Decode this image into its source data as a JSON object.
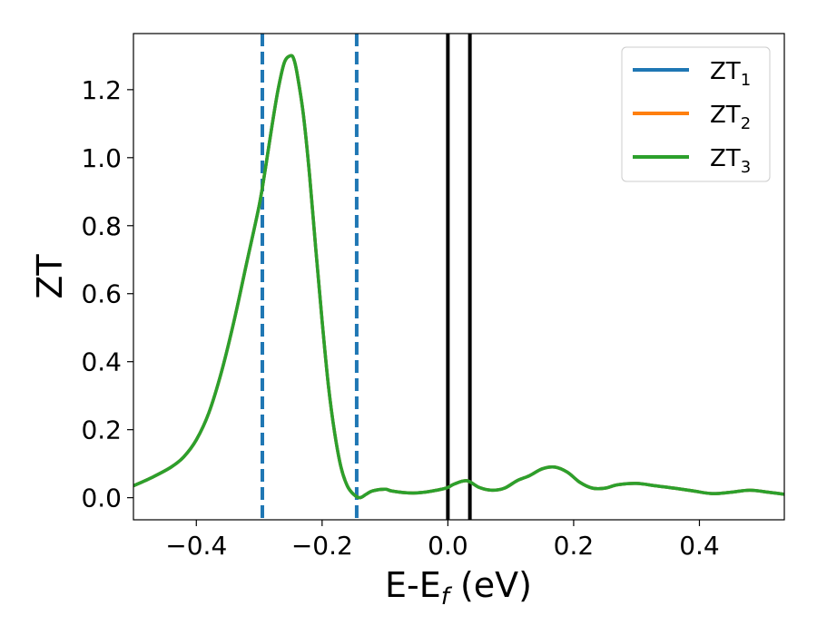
{
  "chart_data": {
    "type": "line",
    "xlabel": "E-E",
    "xlabel_sub": "f",
    "xlabel_unit": " (eV)",
    "ylabel": "ZT",
    "xlim": [
      -0.5,
      0.535
    ],
    "ylim": [
      -0.065,
      1.365
    ],
    "xticks": [
      -0.4,
      -0.2,
      0.0,
      0.2,
      0.4
    ],
    "xtick_labels": [
      "−0.4",
      "−0.2",
      "0.0",
      "0.2",
      "0.4"
    ],
    "yticks": [
      0.0,
      0.2,
      0.4,
      0.6,
      0.8,
      1.0,
      1.2
    ],
    "ytick_labels": [
      "0.0",
      "0.2",
      "0.4",
      "0.6",
      "0.8",
      "1.0",
      "1.2"
    ],
    "legend_position": "top-right",
    "x": [
      -0.5,
      -0.47,
      -0.44,
      -0.42,
      -0.4,
      -0.38,
      -0.36,
      -0.34,
      -0.32,
      -0.3,
      -0.29,
      -0.28,
      -0.27,
      -0.26,
      -0.25,
      -0.245,
      -0.24,
      -0.23,
      -0.22,
      -0.21,
      -0.2,
      -0.19,
      -0.18,
      -0.17,
      -0.16,
      -0.15,
      -0.14,
      -0.13,
      -0.12,
      -0.1,
      -0.09,
      -0.07,
      -0.05,
      -0.03,
      -0.01,
      0.0,
      0.01,
      0.03,
      0.05,
      0.07,
      0.09,
      0.11,
      0.13,
      0.15,
      0.17,
      0.19,
      0.21,
      0.23,
      0.25,
      0.27,
      0.3,
      0.33,
      0.36,
      0.39,
      0.42,
      0.45,
      0.48,
      0.51,
      0.535
    ],
    "series": [
      {
        "name": "ZT",
        "sub": "1",
        "color": "#1f77b4",
        "values": [
          0.035,
          0.06,
          0.09,
          0.12,
          0.17,
          0.25,
          0.37,
          0.52,
          0.69,
          0.86,
          0.97,
          1.09,
          1.2,
          1.28,
          1.3,
          1.29,
          1.25,
          1.13,
          0.95,
          0.73,
          0.52,
          0.33,
          0.19,
          0.09,
          0.035,
          0.01,
          0.0,
          0.01,
          0.02,
          0.025,
          0.02,
          0.015,
          0.014,
          0.018,
          0.025,
          0.03,
          0.04,
          0.05,
          0.03,
          0.022,
          0.028,
          0.05,
          0.065,
          0.085,
          0.09,
          0.075,
          0.045,
          0.028,
          0.028,
          0.038,
          0.042,
          0.035,
          0.028,
          0.02,
          0.012,
          0.016,
          0.022,
          0.016,
          0.01
        ]
      },
      {
        "name": "ZT",
        "sub": "2",
        "color": "#ff7f0e",
        "values": [
          0.035,
          0.06,
          0.09,
          0.12,
          0.17,
          0.25,
          0.37,
          0.52,
          0.69,
          0.86,
          0.97,
          1.09,
          1.2,
          1.28,
          1.3,
          1.29,
          1.25,
          1.13,
          0.95,
          0.73,
          0.52,
          0.33,
          0.19,
          0.09,
          0.035,
          0.01,
          0.0,
          0.01,
          0.02,
          0.025,
          0.02,
          0.015,
          0.014,
          0.018,
          0.025,
          0.03,
          0.04,
          0.05,
          0.03,
          0.022,
          0.028,
          0.05,
          0.065,
          0.085,
          0.09,
          0.075,
          0.045,
          0.028,
          0.028,
          0.038,
          0.042,
          0.035,
          0.028,
          0.02,
          0.012,
          0.016,
          0.022,
          0.016,
          0.01
        ]
      },
      {
        "name": "ZT",
        "sub": "3",
        "color": "#2ca02c",
        "values": [
          0.035,
          0.06,
          0.09,
          0.12,
          0.17,
          0.25,
          0.37,
          0.52,
          0.69,
          0.86,
          0.97,
          1.09,
          1.2,
          1.28,
          1.3,
          1.29,
          1.25,
          1.13,
          0.95,
          0.73,
          0.52,
          0.33,
          0.19,
          0.09,
          0.035,
          0.01,
          0.0,
          0.01,
          0.02,
          0.025,
          0.02,
          0.015,
          0.014,
          0.018,
          0.025,
          0.03,
          0.04,
          0.05,
          0.03,
          0.022,
          0.028,
          0.05,
          0.065,
          0.085,
          0.09,
          0.075,
          0.045,
          0.028,
          0.028,
          0.038,
          0.042,
          0.035,
          0.028,
          0.02,
          0.012,
          0.016,
          0.022,
          0.016,
          0.01
        ]
      }
    ],
    "vlines": [
      {
        "x": -0.295,
        "style": "dashed",
        "color": "#1f77b4"
      },
      {
        "x": -0.145,
        "style": "dashed",
        "color": "#1f77b4"
      },
      {
        "x": 0.0,
        "style": "solid",
        "color": "#000000"
      },
      {
        "x": 0.035,
        "style": "solid",
        "color": "#000000"
      }
    ]
  }
}
